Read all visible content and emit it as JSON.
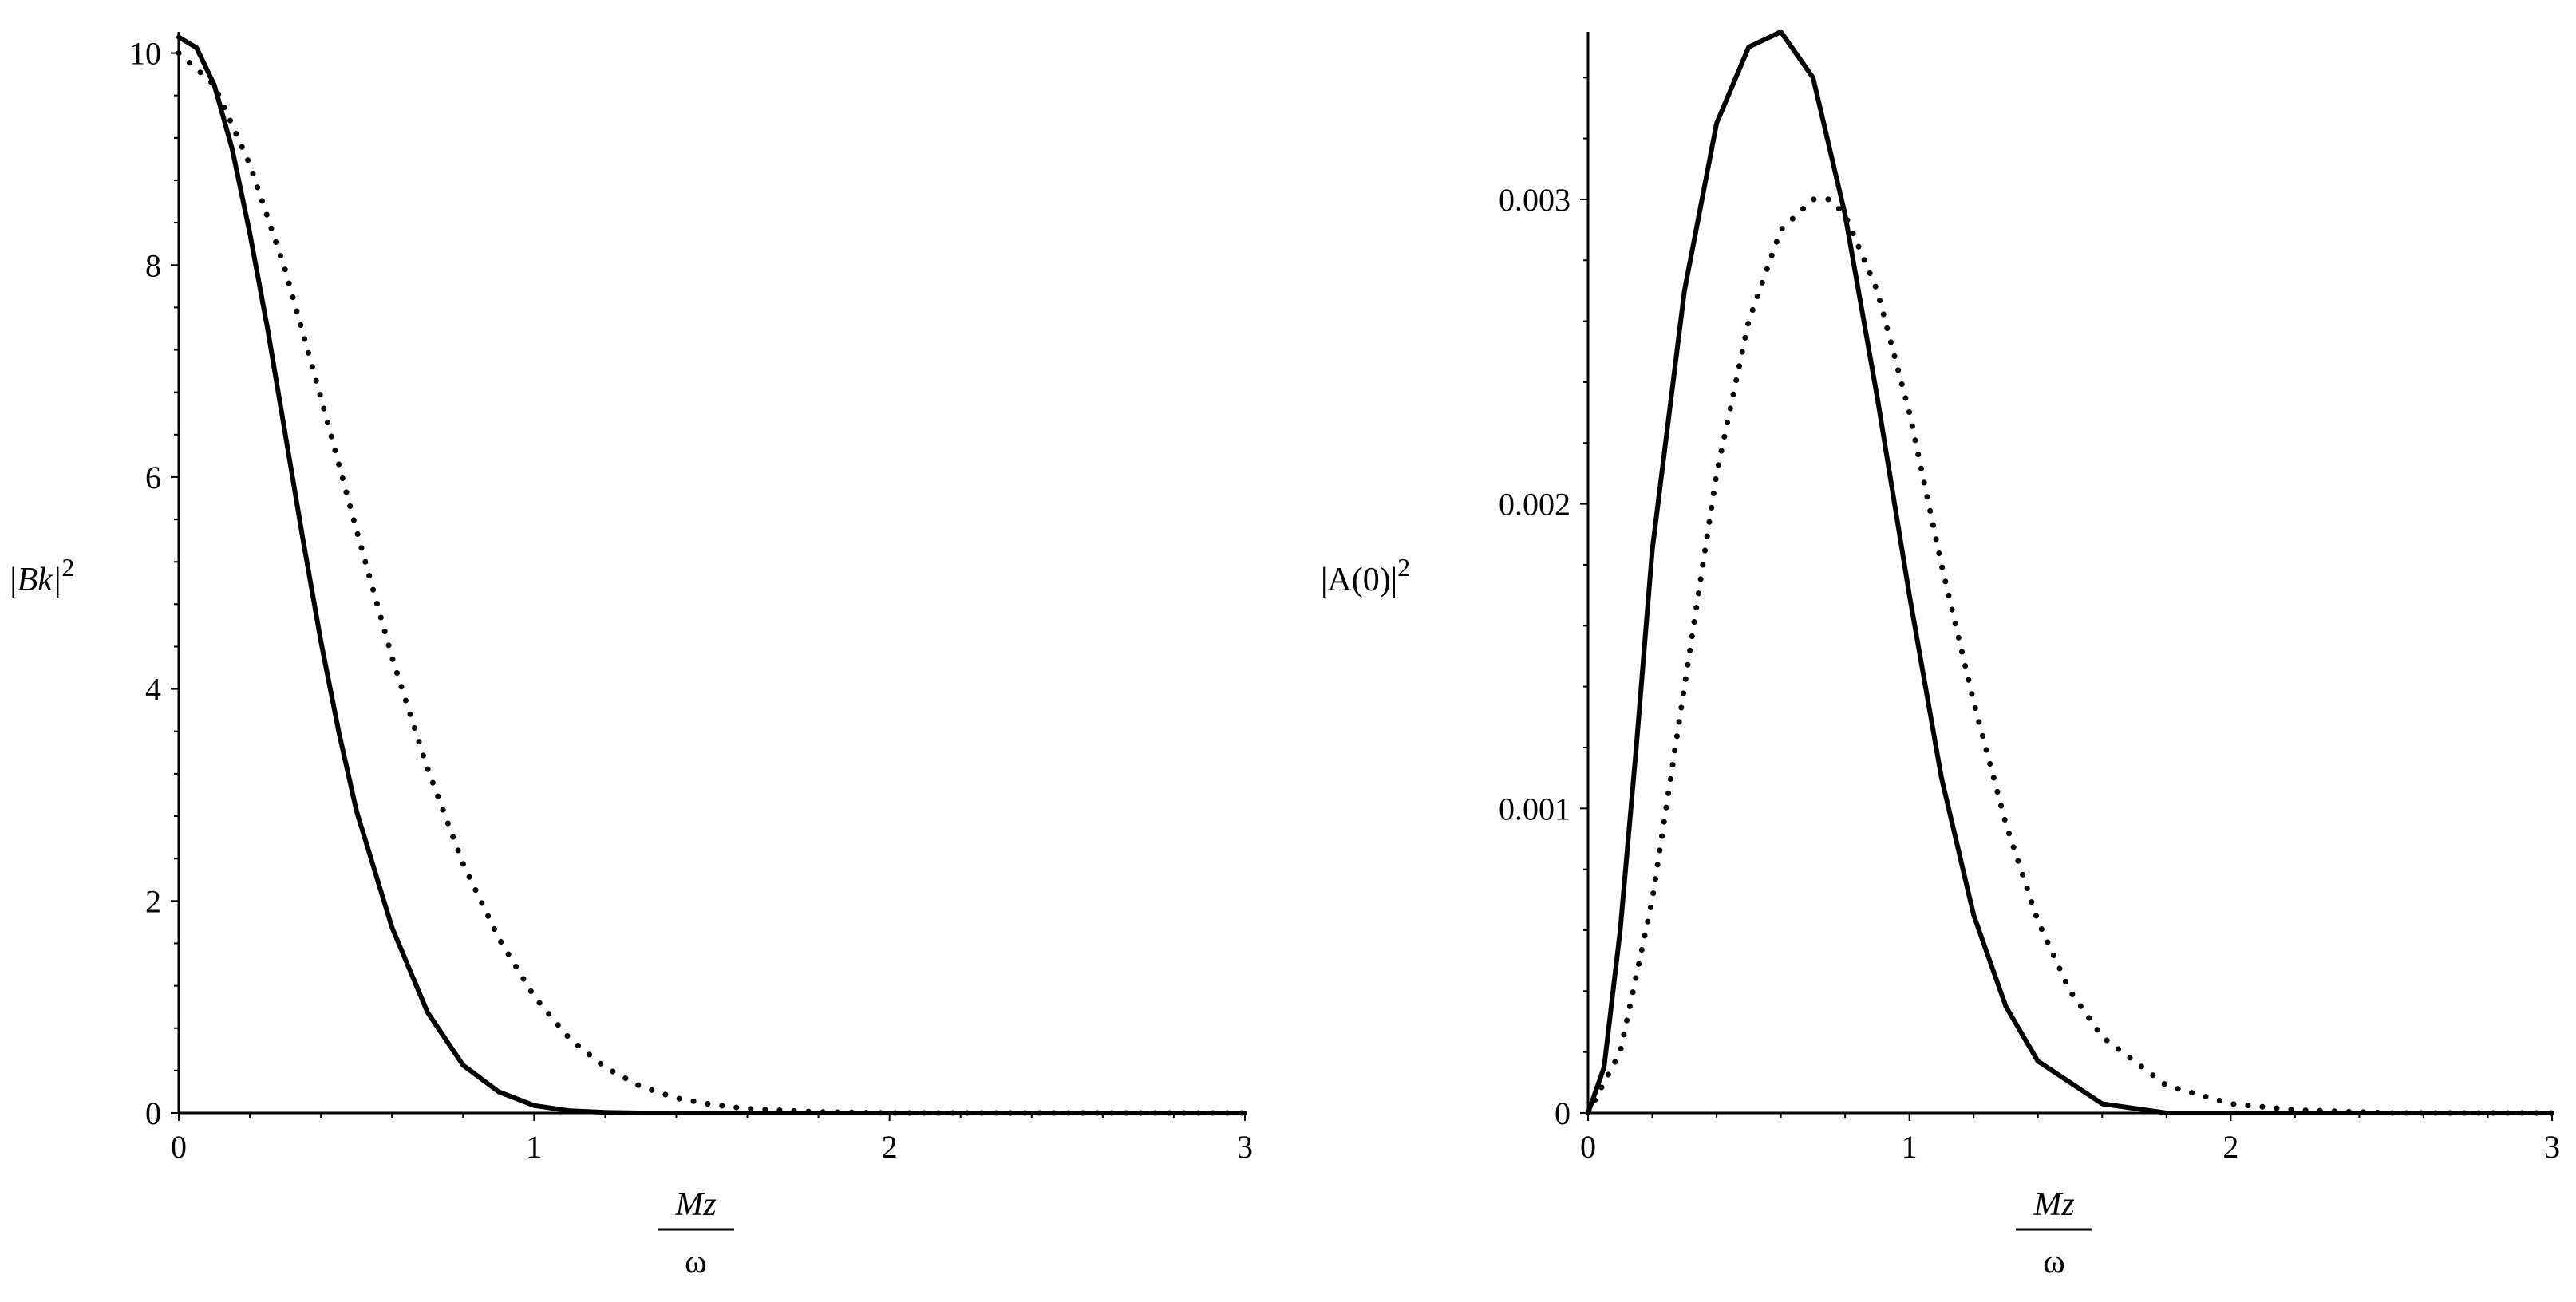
{
  "chart_data": [
    {
      "type": "line",
      "xlabel": {
        "numerator": "Mz",
        "denominator": "ω"
      },
      "ylabel": {
        "base": "|Bk|",
        "sup": "2"
      },
      "xlim": [
        0,
        3
      ],
      "ylim": [
        0,
        10.2
      ],
      "x_ticks": [
        "0",
        "1",
        "2",
        "3"
      ],
      "y_ticks": [
        "0",
        "2",
        "4",
        "6",
        "8",
        "10"
      ],
      "grid": false,
      "series": [
        {
          "style": "solid",
          "x": [
            0,
            0.05,
            0.1,
            0.15,
            0.2,
            0.25,
            0.3,
            0.35,
            0.4,
            0.45,
            0.5,
            0.6,
            0.7,
            0.8,
            0.9,
            1.0,
            1.1,
            1.2,
            1.3,
            1.5,
            2.0,
            2.5,
            3.0
          ],
          "values": [
            10.15,
            10.05,
            9.7,
            9.1,
            8.3,
            7.4,
            6.4,
            5.4,
            4.45,
            3.6,
            2.85,
            1.75,
            0.95,
            0.45,
            0.2,
            0.07,
            0.02,
            0.005,
            0,
            0,
            0,
            0,
            0
          ]
        },
        {
          "style": "dotted",
          "x": [
            0,
            0.1,
            0.2,
            0.3,
            0.4,
            0.5,
            0.6,
            0.7,
            0.8,
            0.9,
            1.0,
            1.1,
            1.2,
            1.3,
            1.4,
            1.5,
            1.6,
            1.8,
            2.0,
            2.5,
            3.0
          ],
          "values": [
            10.0,
            9.7,
            8.95,
            7.95,
            6.75,
            5.5,
            4.3,
            3.25,
            2.35,
            1.65,
            1.1,
            0.7,
            0.43,
            0.25,
            0.14,
            0.08,
            0.04,
            0.01,
            0,
            0,
            0
          ]
        }
      ]
    },
    {
      "type": "line",
      "xlabel": {
        "numerator": "Mz",
        "denominator": "ω"
      },
      "ylabel": {
        "base": "|A(0)|",
        "sup": "2"
      },
      "xlim": [
        0,
        3
      ],
      "ylim": [
        0,
        0.00355
      ],
      "x_ticks": [
        "0",
        "1",
        "2",
        "3"
      ],
      "y_ticks": [
        "0",
        "0.001",
        "0.002",
        "0.003"
      ],
      "grid": false,
      "series": [
        {
          "style": "solid",
          "x": [
            0,
            0.05,
            0.1,
            0.15,
            0.2,
            0.3,
            0.4,
            0.5,
            0.6,
            0.7,
            0.8,
            0.9,
            1.0,
            1.1,
            1.2,
            1.3,
            1.4,
            1.6,
            1.8,
            2.0,
            2.5,
            3.0
          ],
          "values": [
            0,
            0.00015,
            0.0006,
            0.0012,
            0.00185,
            0.0027,
            0.00325,
            0.0035,
            0.00355,
            0.0034,
            0.00295,
            0.00235,
            0.0017,
            0.0011,
            0.00065,
            0.00035,
            0.00017,
            3e-05,
            0,
            0,
            0,
            0
          ]
        },
        {
          "style": "dotted",
          "x": [
            0,
            0.1,
            0.2,
            0.3,
            0.4,
            0.5,
            0.6,
            0.7,
            0.75,
            0.8,
            0.9,
            1.0,
            1.1,
            1.2,
            1.3,
            1.4,
            1.5,
            1.6,
            1.8,
            2.0,
            2.2,
            2.5,
            3.0
          ],
          "values": [
            0,
            0.0002,
            0.0007,
            0.0014,
            0.0021,
            0.0026,
            0.0029,
            0.003,
            0.003,
            0.00295,
            0.0027,
            0.0023,
            0.0018,
            0.00135,
            0.00095,
            0.00063,
            0.0004,
            0.00025,
            9e-05,
            3e-05,
            1e-05,
            0,
            0
          ]
        }
      ]
    }
  ]
}
